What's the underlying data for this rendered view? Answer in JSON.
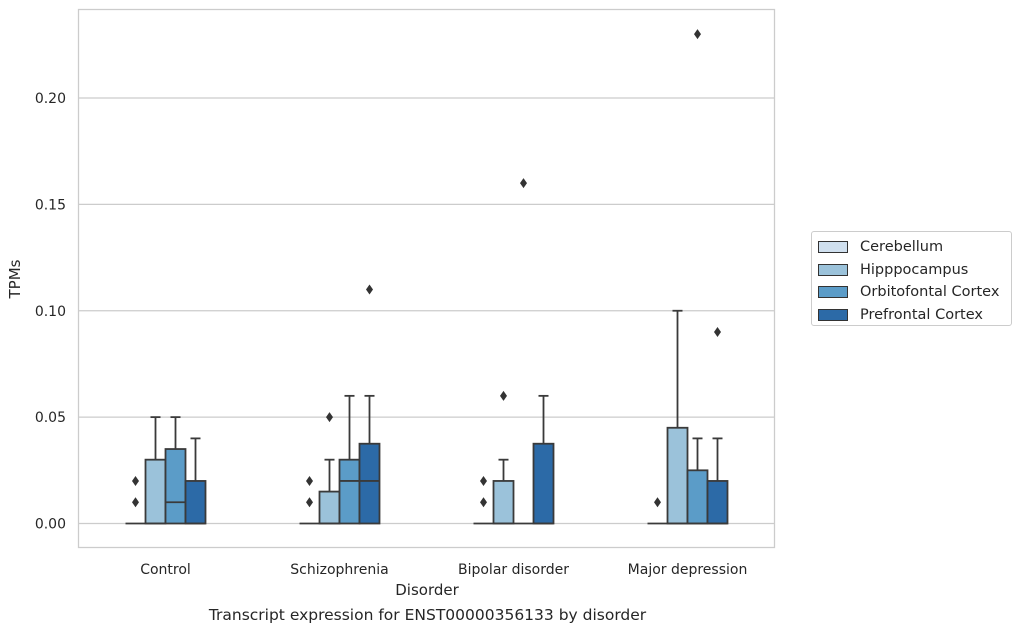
{
  "chart_data": {
    "type": "box",
    "title": "",
    "caption": "Transcript expression for ENST00000356133 by disorder",
    "xlabel": "Disorder",
    "ylabel": "TPMs",
    "ylim": [
      -0.011,
      0.242
    ],
    "yticks": [
      "0.00",
      "0.05",
      "0.10",
      "0.15",
      "0.20"
    ],
    "categories": [
      "Control",
      "Schizophrenia",
      "Bipolar disorder",
      "Major depression"
    ],
    "grid": true,
    "legend_position": "right",
    "series": [
      {
        "name": "Cerebellum",
        "color": "#d0e0ef",
        "boxes": [
          {
            "q1": 0,
            "median": 0,
            "q3": 0,
            "whisker_low": 0,
            "whisker_high": 0,
            "outliers": [
              0.01,
              0.02
            ]
          },
          {
            "q1": 0,
            "median": 0,
            "q3": 0,
            "whisker_low": 0,
            "whisker_high": 0,
            "outliers": [
              0.01,
              0.02
            ]
          },
          {
            "q1": 0,
            "median": 0,
            "q3": 0,
            "whisker_low": 0,
            "whisker_high": 0,
            "outliers": [
              0.01,
              0.02
            ]
          },
          {
            "q1": 0,
            "median": 0,
            "q3": 0,
            "whisker_low": 0,
            "whisker_high": 0,
            "outliers": [
              0.01
            ]
          }
        ]
      },
      {
        "name": "Hipppocampus",
        "color": "#9bc2da",
        "boxes": [
          {
            "q1": 0,
            "median": 0,
            "q3": 0.03,
            "whisker_low": 0,
            "whisker_high": 0.05,
            "outliers": []
          },
          {
            "q1": 0,
            "median": 0,
            "q3": 0.015,
            "whisker_low": 0,
            "whisker_high": 0.03,
            "outliers": [
              0.05
            ]
          },
          {
            "q1": 0,
            "median": 0,
            "q3": 0.02,
            "whisker_low": 0,
            "whisker_high": 0.03,
            "outliers": [
              0.06
            ]
          },
          {
            "q1": 0,
            "median": 0,
            "q3": 0.045,
            "whisker_low": 0,
            "whisker_high": 0.1,
            "outliers": []
          }
        ]
      },
      {
        "name": "Orbitofontal Cortex",
        "color": "#5b9cc8",
        "boxes": [
          {
            "q1": 0,
            "median": 0.01,
            "q3": 0.035,
            "whisker_low": 0,
            "whisker_high": 0.05,
            "outliers": []
          },
          {
            "q1": 0,
            "median": 0.02,
            "q3": 0.03,
            "whisker_low": 0,
            "whisker_high": 0.06,
            "outliers": []
          },
          {
            "q1": 0,
            "median": 0,
            "q3": 0,
            "whisker_low": 0,
            "whisker_high": 0,
            "outliers": [
              0.16
            ]
          },
          {
            "q1": 0,
            "median": 0,
            "q3": 0.025,
            "whisker_low": 0,
            "whisker_high": 0.04,
            "outliers": [
              0.23
            ]
          }
        ]
      },
      {
        "name": "Prefrontal Cortex",
        "color": "#2c6aa7",
        "boxes": [
          {
            "q1": 0,
            "median": 0,
            "q3": 0.02,
            "whisker_low": 0,
            "whisker_high": 0.04,
            "outliers": []
          },
          {
            "q1": 0,
            "median": 0.02,
            "q3": 0.0375,
            "whisker_low": 0,
            "whisker_high": 0.06,
            "outliers": [
              0.11
            ]
          },
          {
            "q1": 0,
            "median": 0,
            "q3": 0.0375,
            "whisker_low": 0,
            "whisker_high": 0.06,
            "outliers": []
          },
          {
            "q1": 0,
            "median": 0,
            "q3": 0.02,
            "whisker_low": 0,
            "whisker_high": 0.04,
            "outliers": [
              0.09
            ]
          }
        ]
      }
    ]
  }
}
